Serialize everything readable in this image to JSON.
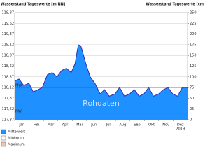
{
  "chart_data": {
    "type": "area",
    "title": "Wasserstand Tageswerte [m NN]",
    "title_right": "Wasserstand Tageswerte [cm",
    "watermark": "Rohdaten",
    "months": [
      "Jan",
      "Feb",
      "Mar",
      "Apr",
      "Mai",
      "Jun",
      "Jul",
      "Aug",
      "Sep",
      "Okt",
      "Nov",
      "Dez"
    ],
    "year": "2019",
    "xlim": [
      1,
      365
    ],
    "ylim": [
      117.37,
      119.87
    ],
    "yticks": [
      {
        "value": 117.37,
        "label": "117,37"
      },
      {
        "value": 117.62,
        "label": "117,62"
      },
      {
        "value": 117.87,
        "label": "117,87"
      },
      {
        "value": 118.12,
        "label": "118,12"
      },
      {
        "value": 118.37,
        "label": "118,37"
      },
      {
        "value": 118.62,
        "label": "118,62"
      },
      {
        "value": 118.87,
        "label": "118,87"
      },
      {
        "value": 119.12,
        "label": "119,12"
      },
      {
        "value": 119.37,
        "label": "119,37"
      },
      {
        "value": 119.62,
        "label": "119,62"
      },
      {
        "value": 119.87,
        "label": "119,87"
      }
    ],
    "y2lim": [
      0,
      250
    ],
    "y2ticks": [
      0,
      25,
      50,
      75,
      100,
      125,
      150,
      175,
      200,
      225,
      250
    ],
    "grid": true,
    "reference_lines": [
      {
        "label": "MW",
        "value": 75
      },
      {
        "label": "NW",
        "value": 15
      }
    ],
    "series": [
      {
        "name": "Mittelwert",
        "color": "#1e90ff",
        "line_color": "#3a2aa8",
        "axis": "y2",
        "x": [
          1,
          10,
          20,
          31,
          40,
          50,
          59,
          70,
          80,
          90,
          100,
          110,
          120,
          128,
          135,
          141,
          151,
          160,
          170,
          181,
          190,
          200,
          212,
          222,
          232,
          243,
          253,
          263,
          273,
          283,
          293,
          304,
          314,
          324,
          334,
          344,
          354,
          365
        ],
        "values": [
          90,
          95,
          80,
          85,
          65,
          70,
          75,
          105,
          110,
          100,
          115,
          120,
          110,
          130,
          175,
          170,
          130,
          100,
          85,
          60,
          70,
          55,
          60,
          75,
          55,
          60,
          70,
          55,
          60,
          75,
          55,
          60,
          70,
          75,
          60,
          55,
          75,
          75
        ]
      },
      {
        "name": "Minimum",
        "color": "#ffffff"
      },
      {
        "name": "Maximum",
        "color": "#f4c6a8"
      }
    ]
  }
}
